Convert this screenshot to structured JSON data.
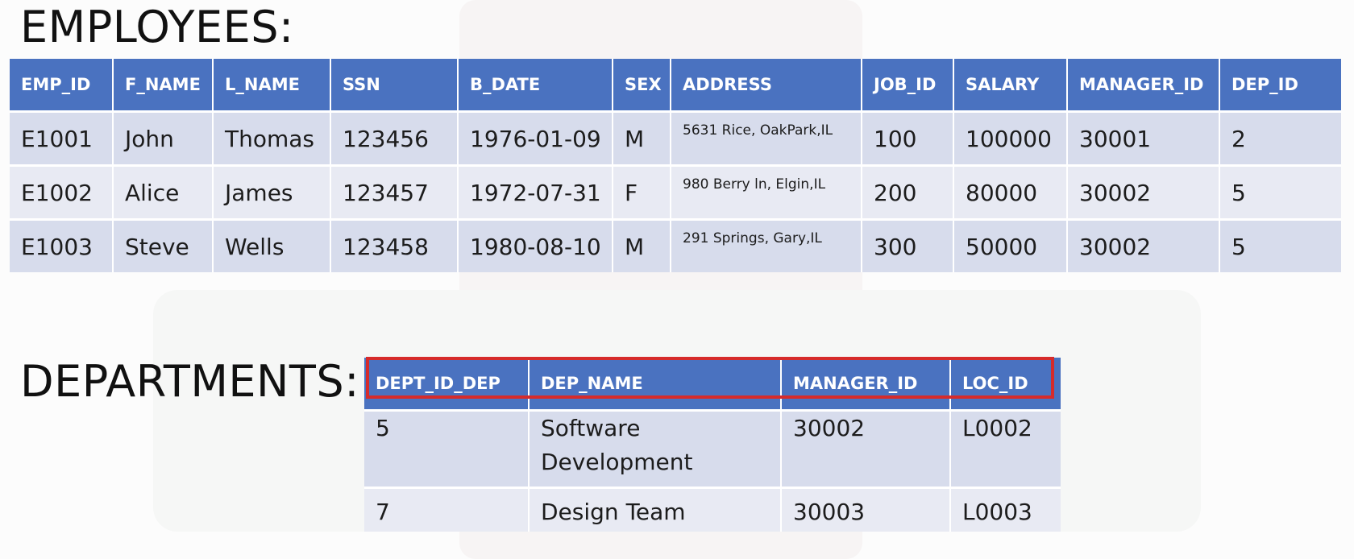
{
  "employees": {
    "title": "EMPLOYEES:",
    "headers": [
      "EMP_ID",
      "F_NAME",
      "L_NAME",
      "SSN",
      "B_DATE",
      "SEX",
      "ADDRESS",
      "JOB_ID",
      "SALARY",
      "MANAGER_ID",
      "DEP_ID"
    ],
    "rows": [
      [
        "E1001",
        "John",
        "Thomas",
        "123456",
        "1976-01-09",
        "M",
        "5631 Rice, OakPark,IL",
        "100",
        "100000",
        "30001",
        "2"
      ],
      [
        "E1002",
        "Alice",
        "James",
        "123457",
        "1972-07-31",
        "F",
        "980 Berry ln, Elgin,IL",
        "200",
        "80000",
        "30002",
        "5"
      ],
      [
        "E1003",
        "Steve",
        "Wells",
        "123458",
        "1980-08-10",
        "M",
        "291 Springs, Gary,IL",
        "300",
        "50000",
        "30002",
        "5"
      ]
    ]
  },
  "departments": {
    "title": "DEPARTMENTS:",
    "headers": [
      "DEPT_ID_DEP",
      "DEP_NAME",
      "MANAGER_ID",
      "LOC_ID"
    ],
    "rows": [
      [
        "5",
        "Software Development",
        "30002",
        "L0002"
      ],
      [
        "7",
        "Design Team",
        "30003",
        "L0003"
      ]
    ]
  },
  "colors": {
    "header_bg": "#4a72c0",
    "row_bg": "#d7dcec",
    "highlight_border": "#d62b2b"
  }
}
